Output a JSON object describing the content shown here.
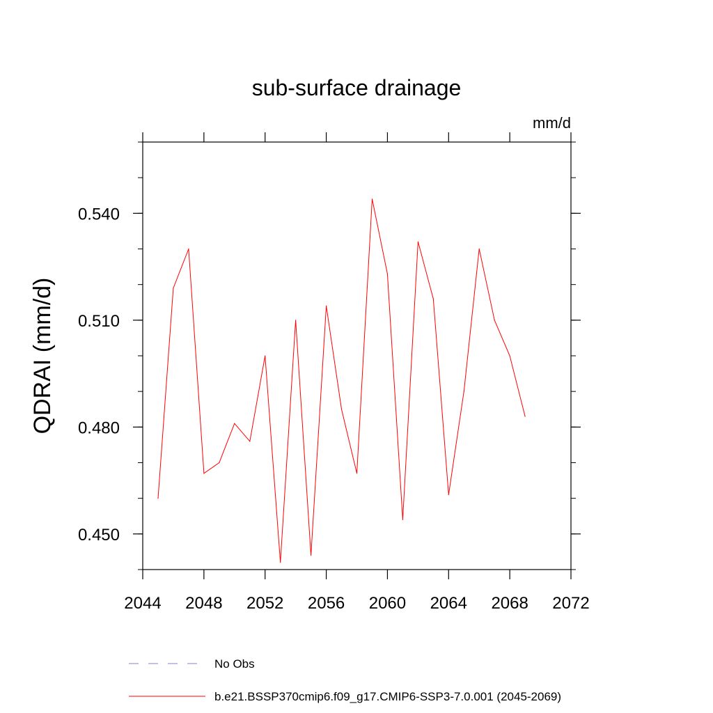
{
  "chart_data": {
    "type": "line",
    "title": "sub-surface drainage",
    "units_label": "mm/d",
    "ylabel": "QDRAI  (mm/d)",
    "xlabel": "",
    "xlim": [
      2044,
      2072
    ],
    "ylim": [
      0.44,
      0.56
    ],
    "x_ticks": [
      "2044",
      "2048",
      "2052",
      "2056",
      "2060",
      "2064",
      "2068",
      "2072"
    ],
    "y_ticks": [
      "0.450",
      "0.480",
      "0.510",
      "0.540"
    ],
    "grid": false,
    "legend_position": "bottom",
    "series": [
      {
        "name": "b.e21.BSSP370cmip6.f09_g17.CMIP6-SSP3-7.0.001 (2045-2069)",
        "color": "#ff0000",
        "style": "solid",
        "x": [
          2045,
          2046,
          2047,
          2048,
          2049,
          2050,
          2051,
          2052,
          2053,
          2054,
          2055,
          2056,
          2057,
          2058,
          2059,
          2060,
          2061,
          2062,
          2063,
          2064,
          2065,
          2066,
          2067,
          2068,
          2069
        ],
        "values": [
          0.46,
          0.519,
          0.53,
          0.467,
          0.47,
          0.481,
          0.476,
          0.5,
          0.442,
          0.51,
          0.444,
          0.514,
          0.485,
          0.467,
          0.544,
          0.523,
          0.454,
          0.532,
          0.516,
          0.461,
          0.49,
          0.53,
          0.51,
          0.5,
          0.483
        ]
      }
    ],
    "legend": [
      {
        "label": "No Obs",
        "color": "#8080d0",
        "style": "dashed"
      },
      {
        "label": "b.e21.BSSP370cmip6.f09_g17.CMIP6-SSP3-7.0.001 (2045-2069)",
        "color": "#ff0000",
        "style": "solid"
      }
    ]
  }
}
